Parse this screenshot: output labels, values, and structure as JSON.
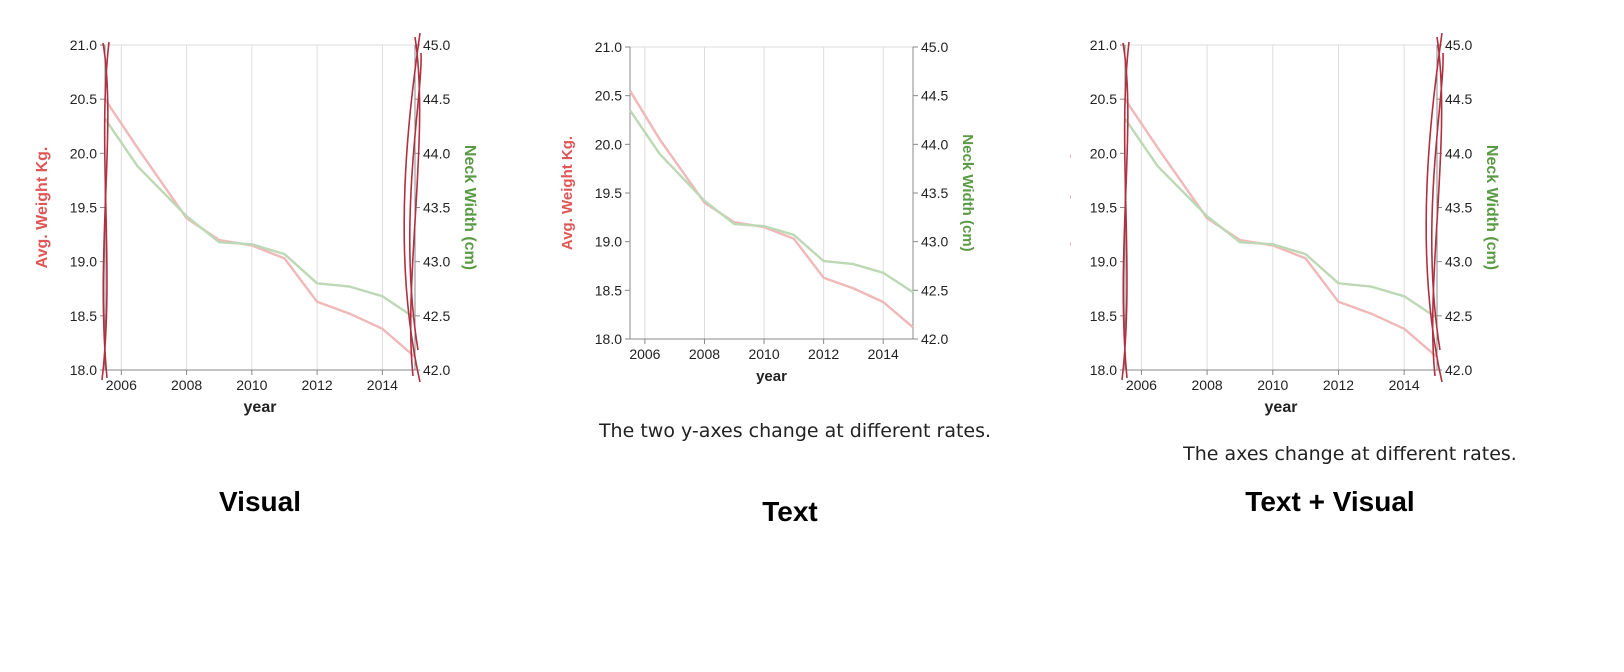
{
  "panels": [
    {
      "title": "Visual",
      "caption": ""
    },
    {
      "title": "Text",
      "caption": "The two y-axes change at different rates."
    },
    {
      "title": "Text + Visual",
      "caption": "The axes change at different rates."
    }
  ],
  "chart_data": [
    {
      "type": "line",
      "title": "",
      "xlabel": "year",
      "ylabel_left": "Avg. Weight Kg.",
      "ylabel_right": "Neck Width (cm)",
      "xlim": [
        2005.5,
        2015
      ],
      "ylim_left": [
        18.0,
        21.0
      ],
      "ylim_right": [
        42.0,
        45.0
      ],
      "xticks": [
        "2006",
        "2008",
        "2010",
        "2012",
        "2014"
      ],
      "yticks_left": [
        "18.0",
        "18.5",
        "19.0",
        "19.5",
        "20.0",
        "20.5",
        "21.0"
      ],
      "yticks_right": [
        "42.0",
        "42.5",
        "43.0",
        "43.5",
        "44.0",
        "44.5",
        "45.0"
      ],
      "grid": "vertical",
      "colors": {
        "left": "#e05555",
        "right": "#5a9a45",
        "left_line": "#f0b8b8",
        "right_line": "#bcd8b4",
        "annotation": "#b03040"
      },
      "series": [
        {
          "name": "Avg. Weight Kg.",
          "axis": "left",
          "x": [
            2005.5,
            2006.5,
            2008,
            2009,
            2010,
            2011,
            2012,
            2013,
            2014,
            2015
          ],
          "values": [
            20.5,
            20.05,
            19.4,
            19.2,
            19.15,
            19.03,
            18.63,
            18.52,
            18.38,
            18.12
          ]
        },
        {
          "name": "Neck Width (cm)",
          "axis": "right",
          "x": [
            2005.5,
            2006.5,
            2008,
            2009,
            2010,
            2011,
            2012,
            2013,
            2014,
            2015
          ],
          "values": [
            44.32,
            43.88,
            43.42,
            43.18,
            43.16,
            43.07,
            42.8,
            42.77,
            42.68,
            42.48
          ]
        }
      ],
      "annotation": "curved lines along both y-axes"
    },
    {
      "type": "line",
      "title": "",
      "xlabel": "year",
      "ylabel_left": "Avg. Weight Kg.",
      "ylabel_right": "Neck Width (cm)",
      "xlim": [
        2005.5,
        2015
      ],
      "ylim_left": [
        18.0,
        21.0
      ],
      "ylim_right": [
        42.0,
        45.0
      ],
      "xticks": [
        "2006",
        "2008",
        "2010",
        "2012",
        "2014"
      ],
      "yticks_left": [
        "18.0",
        "18.5",
        "19.0",
        "19.5",
        "20.0",
        "20.5",
        "21.0"
      ],
      "yticks_right": [
        "42.0",
        "42.5",
        "43.0",
        "43.5",
        "44.0",
        "44.5",
        "45.0"
      ],
      "grid": "vertical",
      "colors": {
        "left": "#e05555",
        "right": "#5a9a45",
        "left_line": "#f0b8b8",
        "right_line": "#bcd8b4",
        "annotation": "#b03040"
      },
      "series": [
        {
          "name": "Avg. Weight Kg.",
          "axis": "left",
          "x": [
            2005.5,
            2006.5,
            2008,
            2009,
            2010,
            2011,
            2012,
            2013,
            2014,
            2015
          ],
          "values": [
            20.55,
            20.05,
            19.4,
            19.2,
            19.15,
            19.03,
            18.63,
            18.52,
            18.38,
            18.12
          ]
        },
        {
          "name": "Neck Width (cm)",
          "axis": "right",
          "x": [
            2005.5,
            2006.5,
            2008,
            2009,
            2010,
            2011,
            2012,
            2013,
            2014,
            2015
          ],
          "values": [
            44.35,
            43.9,
            43.42,
            43.18,
            43.16,
            43.07,
            42.8,
            42.77,
            42.68,
            42.48
          ]
        }
      ],
      "annotation": ""
    },
    {
      "type": "line",
      "title": "",
      "xlabel": "year",
      "ylabel_left": "Avg. Weight Kg.",
      "ylabel_right": "Neck Width (cm)",
      "xlim": [
        2005.5,
        2015
      ],
      "ylim_left": [
        18.0,
        21.0
      ],
      "ylim_right": [
        42.0,
        45.0
      ],
      "xticks": [
        "2006",
        "2008",
        "2010",
        "2012",
        "2014"
      ],
      "yticks_left": [
        "18.0",
        "18.5",
        "19.0",
        "19.5",
        "20.0",
        "20.5",
        "21.0"
      ],
      "yticks_right": [
        "42.0",
        "42.5",
        "43.0",
        "43.5",
        "44.0",
        "44.5",
        "45.0"
      ],
      "grid": "vertical",
      "colors": {
        "left": "#e05555",
        "right": "#5a9a45",
        "left_line": "#f0b8b8",
        "right_line": "#bcd8b4",
        "annotation": "#b03040"
      },
      "series": [
        {
          "name": "Avg. Weight Kg.",
          "axis": "left",
          "x": [
            2005.5,
            2006.5,
            2008,
            2009,
            2010,
            2011,
            2012,
            2013,
            2014,
            2015
          ],
          "values": [
            20.5,
            20.05,
            19.4,
            19.2,
            19.15,
            19.03,
            18.63,
            18.52,
            18.38,
            18.12
          ]
        },
        {
          "name": "Neck Width (cm)",
          "axis": "right",
          "x": [
            2005.5,
            2006.5,
            2008,
            2009,
            2010,
            2011,
            2012,
            2013,
            2014,
            2015
          ],
          "values": [
            44.32,
            43.88,
            43.42,
            43.18,
            43.16,
            43.07,
            42.8,
            42.77,
            42.68,
            42.48
          ]
        }
      ],
      "annotation": "curved lines along both y-axes"
    }
  ]
}
